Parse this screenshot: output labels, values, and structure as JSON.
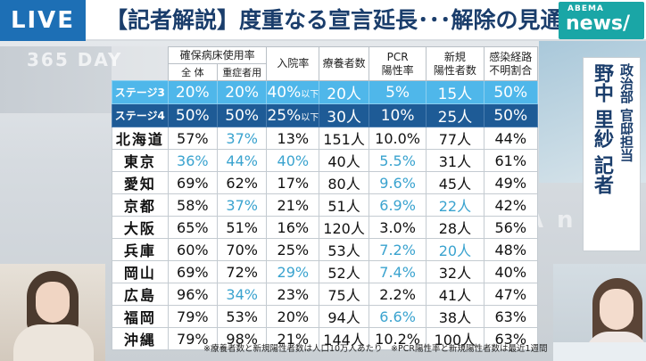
{
  "header": {
    "live_label": "LIVE",
    "headline": "【記者解説】度重なる宣言延長･･･解除の見通しは",
    "logo_top": "ABEMA",
    "logo_main": "news/"
  },
  "background": {
    "ghost_text_1": "365 DAY",
    "ghost_text_2": "MA n"
  },
  "table": {
    "group_header": "確保病床使用率",
    "sub_headers": [
      "全 体",
      "重症者用"
    ],
    "headers": {
      "hospitalization": "入院率",
      "recuperating": "療養者数",
      "pcr": [
        "PCR",
        "陽性率"
      ],
      "new_cases": [
        "新規",
        "陽性者数"
      ],
      "unknown_route": [
        "感染経路",
        "不明割合"
      ]
    },
    "stages": [
      {
        "label": "ステージ3",
        "overall": "20%",
        "severe": "20%",
        "hosp": "40%",
        "hosp_suffix": "以下",
        "recup": "20人",
        "pcr": "5%",
        "new": "15人",
        "unknown": "50%"
      },
      {
        "label": "ステージ4",
        "overall": "50%",
        "severe": "50%",
        "hosp": "25%",
        "hosp_suffix": "以下",
        "recup": "30人",
        "pcr": "10%",
        "new": "25人",
        "unknown": "50%"
      }
    ],
    "rows": [
      {
        "pref": "北海道",
        "overall": "57%",
        "severe": "37%",
        "hosp": "13%",
        "recup": "151人",
        "pcr": "10.0%",
        "new": "77人",
        "unknown": "44%"
      },
      {
        "pref": "東京",
        "overall": "36%",
        "severe": "44%",
        "hosp": "40%",
        "recup": "40人",
        "pcr": "5.5%",
        "new": "31人",
        "unknown": "61%"
      },
      {
        "pref": "愛知",
        "overall": "69%",
        "severe": "62%",
        "hosp": "17%",
        "recup": "80人",
        "pcr": "9.6%",
        "new": "45人",
        "unknown": "49%"
      },
      {
        "pref": "京都",
        "overall": "58%",
        "severe": "37%",
        "hosp": "21%",
        "recup": "51人",
        "pcr": "6.9%",
        "new": "22人",
        "unknown": "42%"
      },
      {
        "pref": "大阪",
        "overall": "65%",
        "severe": "51%",
        "hosp": "16%",
        "recup": "120人",
        "pcr": "3.0%",
        "new": "28人",
        "unknown": "56%"
      },
      {
        "pref": "兵庫",
        "overall": "60%",
        "severe": "70%",
        "hosp": "25%",
        "recup": "53人",
        "pcr": "7.2%",
        "new": "20人",
        "unknown": "48%"
      },
      {
        "pref": "岡山",
        "overall": "69%",
        "severe": "72%",
        "hosp": "29%",
        "recup": "52人",
        "pcr": "7.4%",
        "new": "32人",
        "unknown": "40%"
      },
      {
        "pref": "広島",
        "overall": "96%",
        "severe": "34%",
        "hosp": "23%",
        "recup": "75人",
        "pcr": "2.2%",
        "new": "41人",
        "unknown": "47%"
      },
      {
        "pref": "福岡",
        "overall": "79%",
        "severe": "53%",
        "hosp": "20%",
        "recup": "94人",
        "pcr": "6.6%",
        "new": "38人",
        "unknown": "63%"
      },
      {
        "pref": "沖縄",
        "overall": "79%",
        "severe": "98%",
        "hosp": "21%",
        "recup": "144人",
        "pcr": "10.2%",
        "new": "100人",
        "unknown": "63%"
      }
    ],
    "light_cells": [
      [
        0,
        "severe"
      ],
      [
        1,
        "overall"
      ],
      [
        1,
        "severe"
      ],
      [
        1,
        "hosp"
      ],
      [
        1,
        "pcr"
      ],
      [
        2,
        "pcr"
      ],
      [
        3,
        "severe"
      ],
      [
        3,
        "pcr"
      ],
      [
        3,
        "new"
      ],
      [
        5,
        "pcr"
      ],
      [
        5,
        "new"
      ],
      [
        6,
        "hosp"
      ],
      [
        6,
        "pcr"
      ],
      [
        7,
        "severe"
      ],
      [
        8,
        "pcr"
      ]
    ]
  },
  "footnote": "※療養者数と新規陽性者数は人口10万人あたり　※PCR陽性率と新規陽性者数は最近1週間",
  "reporter": {
    "title": "政治部 官邸担当",
    "name": "野中 里紗 記者"
  }
}
